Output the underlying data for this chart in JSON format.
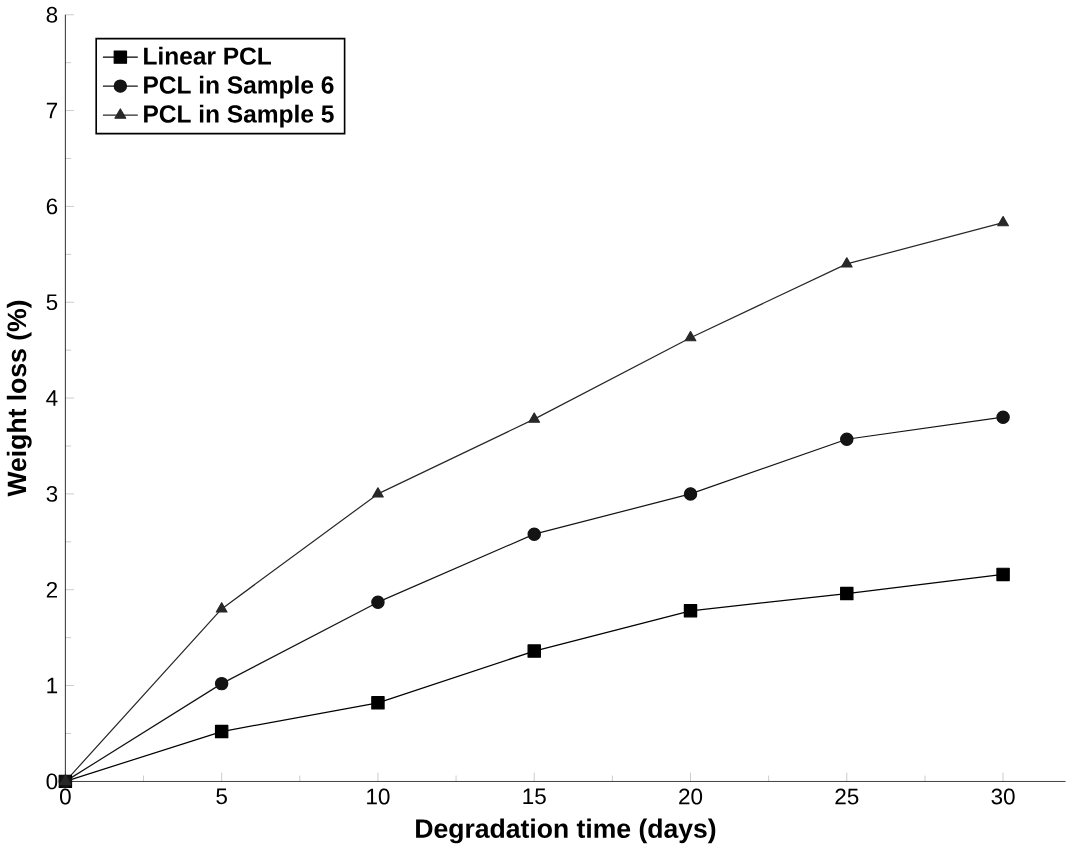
{
  "chart_data": {
    "type": "line",
    "xlabel": "Degradation time (days)",
    "ylabel": "Weight loss (%)",
    "x": [
      0,
      5,
      10,
      15,
      20,
      25,
      30
    ],
    "series": [
      {
        "name": "Linear PCL",
        "color": "#000000",
        "marker": "square",
        "values": [
          0,
          0.52,
          0.82,
          1.36,
          1.78,
          1.96,
          2.16
        ]
      },
      {
        "name": "PCL in Sample 6",
        "color": "#141414",
        "marker": "circle",
        "values": [
          0,
          1.02,
          1.87,
          2.58,
          3.0,
          3.57,
          3.8
        ]
      },
      {
        "name": "PCL in Sample 5",
        "color": "#282828",
        "marker": "triangle",
        "values": [
          0,
          1.8,
          3.0,
          3.78,
          4.63,
          5.4,
          5.83
        ]
      }
    ],
    "xlim": [
      0,
      32
    ],
    "ylim": [
      0,
      8
    ],
    "xticks": [
      0,
      5,
      10,
      15,
      20,
      25,
      30
    ],
    "yticks": [
      0,
      1,
      2,
      3,
      4,
      5,
      6,
      7,
      8
    ],
    "legend": "top left",
    "grid": false,
    "line_style": "solid"
  }
}
